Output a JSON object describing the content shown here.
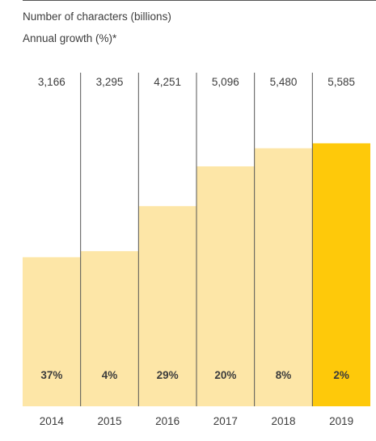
{
  "legend": {
    "line1": "Number of characters (billions)",
    "line2": "Annual growth (%)*"
  },
  "colors": {
    "bar_default": "#fde6a7",
    "bar_highlight": "#fec90a",
    "divider": "#555555",
    "text": "#3c3c3c"
  },
  "chart_data": {
    "type": "bar",
    "categories": [
      "2014",
      "2015",
      "2016",
      "2017",
      "2018",
      "2019"
    ],
    "series": [
      {
        "name": "Number of characters (billions)",
        "values": [
          3166,
          3295,
          4251,
          5096,
          5480,
          5585
        ],
        "labels": [
          "3,166",
          "3,295",
          "4,251",
          "5,096",
          "5,480",
          "5,585"
        ]
      },
      {
        "name": "Annual growth (%)*",
        "values": [
          37,
          4,
          29,
          20,
          8,
          2
        ],
        "labels": [
          "37%",
          "4%",
          "29%",
          "20%",
          "8%",
          "2%"
        ]
      }
    ],
    "highlight_category": "2019",
    "ylim": [
      0,
      7600
    ],
    "grid": false,
    "legend_position": "top-left"
  }
}
